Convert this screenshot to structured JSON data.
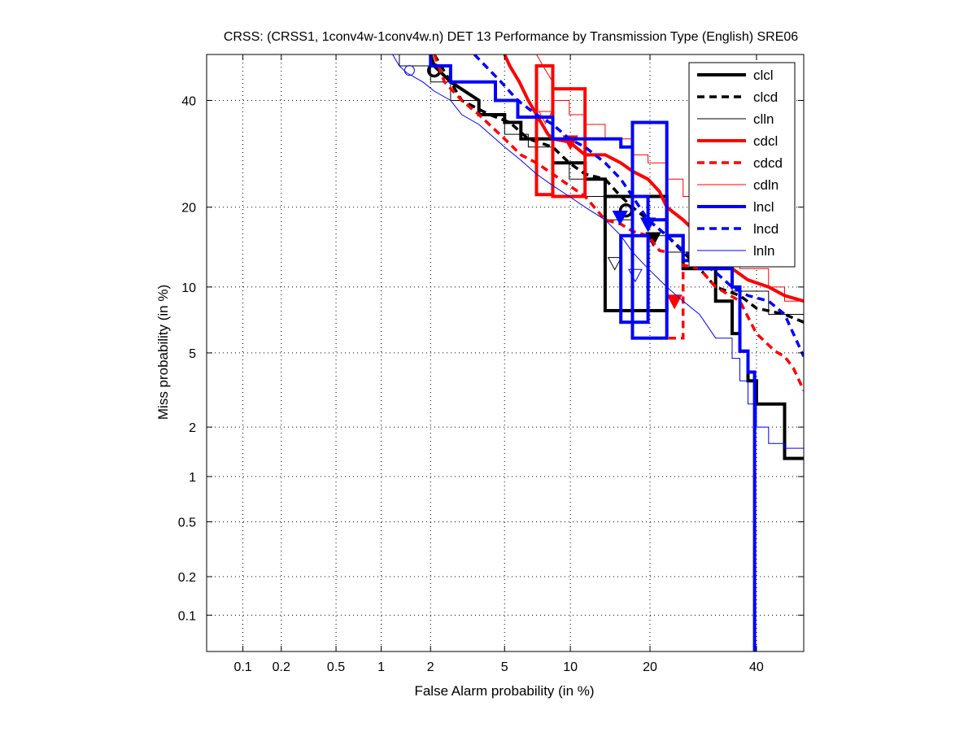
{
  "chart_data": {
    "type": "line",
    "title": "CRSS: (CRSS1, 1conv4w-1conv4w.n) DET 13 Performance by Transmission Type (English) SRE06",
    "xlabel": "False Alarm probability (in %)",
    "ylabel": "Miss probability (in %)",
    "scale": "normal-deviate (probit)",
    "xlim": [
      0.05,
      50.3
    ],
    "ylim": [
      0.05,
      50
    ],
    "grid": true,
    "x_ticks": [
      0.1,
      0.2,
      0.5,
      1,
      2,
      5,
      10,
      20,
      40
    ],
    "x_tick_labels": [
      "0.1",
      "0.2",
      "0.5",
      "1",
      "2",
      "5",
      "10",
      "20",
      "40"
    ],
    "y_ticks": [
      0.1,
      0.2,
      0.5,
      1,
      2,
      5,
      10,
      20,
      40
    ],
    "y_tick_labels": [
      "0.1",
      "0.2",
      "0.5",
      "1",
      "2",
      "5",
      "10",
      "20",
      "40"
    ],
    "legend_position": "top-right",
    "series": [
      {
        "name": "clcl",
        "color": "#000000",
        "style": "solid",
        "width": 4,
        "points": [
          [
            2.0,
            50
          ],
          [
            2.1,
            47.5
          ],
          [
            2.6,
            44
          ],
          [
            3.7,
            40
          ],
          [
            3.7,
            37
          ],
          [
            5.0,
            37
          ],
          [
            5.0,
            35.4
          ],
          [
            6.0,
            35.4
          ],
          [
            6.0,
            32.1
          ],
          [
            8.4,
            32.1
          ],
          [
            8.4,
            27.5
          ],
          [
            11.5,
            27.5
          ],
          [
            11.5,
            24.6
          ],
          [
            13.8,
            24.6
          ],
          [
            13.8,
            21.7
          ],
          [
            22.7,
            21.7
          ],
          [
            22.7,
            15.9
          ],
          [
            25.5,
            15.9
          ],
          [
            25.5,
            11.9
          ],
          [
            31.6,
            11.9
          ],
          [
            31.6,
            8.7
          ],
          [
            34.9,
            8.7
          ],
          [
            34.9,
            6.2
          ],
          [
            36.5,
            6.2
          ],
          [
            36.5,
            5.1
          ],
          [
            38.2,
            5.1
          ],
          [
            38.2,
            3.6
          ],
          [
            40,
            3.6
          ],
          [
            40,
            2.7
          ],
          [
            46.1,
            2.7
          ],
          [
            46.1,
            1.3
          ],
          [
            50.3,
            1.3
          ]
        ],
        "box": {
          "fa": [
            13.8,
            22.7
          ],
          "miss": [
            7.9,
            21.7
          ]
        },
        "marker": {
          "fa": 16.5,
          "miss": 19.5,
          "shape": "circle"
        },
        "start_marker": {
          "fa": 2.1,
          "miss": 46.5,
          "shape": "circle"
        }
      },
      {
        "name": "clcd",
        "color": "#000000",
        "style": "dashed",
        "width": 3.5,
        "points": [
          [
            2.1,
            50
          ],
          [
            2.6,
            44
          ],
          [
            3.0,
            40
          ],
          [
            4.2,
            37
          ],
          [
            5.3,
            35.4
          ],
          [
            6.5,
            32.1
          ],
          [
            8.4,
            30.5
          ],
          [
            9.9,
            27.5
          ],
          [
            11.5,
            25.5
          ],
          [
            13.8,
            24.6
          ],
          [
            15.8,
            21.7
          ],
          [
            17.4,
            20
          ],
          [
            19.7,
            18.1
          ],
          [
            22.7,
            15.9
          ],
          [
            25.5,
            13.8
          ],
          [
            28.5,
            11.9
          ],
          [
            31.6,
            10
          ],
          [
            36.5,
            9.2
          ],
          [
            40,
            8.1
          ],
          [
            46.1,
            7.6
          ],
          [
            50.3,
            7.0
          ]
        ],
        "marker": {
          "fa": 20.5,
          "miss": 15.5,
          "shape": "triangle"
        }
      },
      {
        "name": "clln",
        "color": "#000000",
        "style": "solid",
        "width": 1,
        "points": [
          [
            1.3,
            50
          ],
          [
            1.3,
            47.5
          ],
          [
            2.0,
            47.5
          ],
          [
            2.0,
            44
          ],
          [
            2.6,
            44
          ],
          [
            2.6,
            40
          ],
          [
            3.7,
            40
          ],
          [
            3.7,
            37
          ],
          [
            5.0,
            37
          ],
          [
            5.0,
            33
          ],
          [
            6.5,
            33
          ],
          [
            6.5,
            30.5
          ],
          [
            8.4,
            30.5
          ],
          [
            8.4,
            27.5
          ],
          [
            9.9,
            27.5
          ],
          [
            9.9,
            24.6
          ],
          [
            11.5,
            24.6
          ],
          [
            11.5,
            21.7
          ],
          [
            13.8,
            21.7
          ],
          [
            13.8,
            18.1
          ],
          [
            17.4,
            18.1
          ],
          [
            17.4,
            15.9
          ],
          [
            22.7,
            15.9
          ],
          [
            22.7,
            13.8
          ],
          [
            28.5,
            13.8
          ],
          [
            28.5,
            11.9
          ],
          [
            34.9,
            11.9
          ],
          [
            34.9,
            9.6
          ],
          [
            42.6,
            9.6
          ],
          [
            42.6,
            7.6
          ],
          [
            50.3,
            7.6
          ]
        ],
        "marker": {
          "fa": 15.0,
          "miss": 12.5,
          "shape": "triangle-open"
        }
      },
      {
        "name": "cdcl",
        "color": "#ff0000",
        "style": "solid",
        "width": 4,
        "points": [
          [
            5.0,
            50
          ],
          [
            5.3,
            47.5
          ],
          [
            5.9,
            44
          ],
          [
            6.5,
            40
          ],
          [
            7.1,
            37
          ],
          [
            8.0,
            33
          ],
          [
            8.4,
            32.1
          ],
          [
            9.9,
            31.5
          ],
          [
            11.5,
            29
          ],
          [
            13.8,
            29
          ],
          [
            15.8,
            27.5
          ],
          [
            17.4,
            26
          ],
          [
            19.7,
            24.6
          ],
          [
            21.5,
            22.5
          ],
          [
            22.7,
            20
          ],
          [
            25.5,
            18.1
          ],
          [
            28.5,
            15.9
          ],
          [
            31.6,
            12.8
          ],
          [
            34.9,
            11.9
          ],
          [
            38.2,
            10.7
          ],
          [
            42.6,
            10
          ],
          [
            46.1,
            9.2
          ],
          [
            50.3,
            8.7
          ]
        ],
        "box": {
          "fa": [
            7.1,
            8.4
          ],
          "miss": [
            22,
            47.5
          ]
        },
        "box2": {
          "fa": [
            8.4,
            11.5
          ],
          "miss": [
            21.7,
            42.5
          ]
        },
        "marker": {
          "fa": 10.0,
          "miss": 31.5,
          "shape": "triangle"
        }
      },
      {
        "name": "cdcd",
        "color": "#ff0000",
        "style": "dashed",
        "width": 3.5,
        "points": [
          [
            2.1,
            50
          ],
          [
            2.4,
            44
          ],
          [
            3.0,
            40
          ],
          [
            3.7,
            37
          ],
          [
            5.0,
            32.1
          ],
          [
            6.0,
            29
          ],
          [
            7.1,
            27.5
          ],
          [
            8.4,
            25.5
          ],
          [
            9.9,
            23.5
          ],
          [
            11.5,
            21.7
          ],
          [
            13.8,
            18.1
          ],
          [
            15.8,
            17.5
          ],
          [
            17.4,
            16.5
          ],
          [
            19.7,
            15.9
          ],
          [
            21.5,
            14
          ],
          [
            22.7,
            13.8
          ],
          [
            22.7,
            5.9
          ],
          [
            25.5,
            5.9
          ],
          [
            25.5,
            12.3
          ],
          [
            28.5,
            11.9
          ],
          [
            31.6,
            10
          ],
          [
            36.5,
            8.7
          ],
          [
            40,
            6.2
          ],
          [
            44,
            5.1
          ],
          [
            46.1,
            4.8
          ],
          [
            48,
            4.2
          ],
          [
            50.3,
            3.2
          ]
        ],
        "marker": {
          "fa": 24.0,
          "miss": 8.7,
          "shape": "triangle"
        }
      },
      {
        "name": "cdln",
        "color": "#ff0000",
        "style": "solid",
        "width": 1,
        "points": [
          [
            7.1,
            50
          ],
          [
            7.6,
            47.5
          ],
          [
            8.4,
            44
          ],
          [
            8.4,
            40
          ],
          [
            9.9,
            40
          ],
          [
            9.9,
            37
          ],
          [
            11.5,
            37
          ],
          [
            11.5,
            35
          ],
          [
            13.8,
            35
          ],
          [
            13.8,
            32.1
          ],
          [
            17.4,
            32.1
          ],
          [
            17.4,
            29
          ],
          [
            19.7,
            29
          ],
          [
            19.7,
            27.5
          ],
          [
            22.7,
            27.5
          ],
          [
            22.7,
            24.6
          ],
          [
            25.5,
            24.6
          ],
          [
            25.5,
            21.7
          ],
          [
            28.5,
            21.7
          ],
          [
            28.5,
            18.1
          ],
          [
            31.6,
            18.1
          ],
          [
            31.6,
            13.8
          ],
          [
            36.5,
            13.8
          ],
          [
            36.5,
            11.9
          ],
          [
            42.6,
            11.9
          ],
          [
            42.6,
            10
          ],
          [
            46.1,
            10
          ],
          [
            46.1,
            8.7
          ],
          [
            50.3,
            8.7
          ]
        ],
        "marker": {
          "fa": 7.8,
          "miss": 36.5,
          "shape": "triangle-open"
        }
      },
      {
        "name": "lncl",
        "color": "#0000ff",
        "style": "solid",
        "width": 4,
        "points": [
          [
            2.0,
            50
          ],
          [
            2.0,
            47.5
          ],
          [
            2.6,
            47.5
          ],
          [
            2.6,
            44
          ],
          [
            4.5,
            44
          ],
          [
            4.5,
            40
          ],
          [
            5.8,
            40
          ],
          [
            5.8,
            36.5
          ],
          [
            8.4,
            36.5
          ],
          [
            8.4,
            32.1
          ],
          [
            15.8,
            32.1
          ],
          [
            15.8,
            30.5
          ],
          [
            17.4,
            30.5
          ],
          [
            17.4,
            21.7
          ],
          [
            19.7,
            21.7
          ],
          [
            19.7,
            18.1
          ],
          [
            22.7,
            18.1
          ],
          [
            22.7,
            15.9
          ],
          [
            25.5,
            15.9
          ],
          [
            25.5,
            12.8
          ],
          [
            28.5,
            12.8
          ],
          [
            28.5,
            11.9
          ],
          [
            34.9,
            11.9
          ],
          [
            34.9,
            10
          ],
          [
            36.5,
            10
          ],
          [
            36.5,
            5.1
          ],
          [
            38.2,
            5.1
          ],
          [
            38.2,
            4.0
          ],
          [
            39.6,
            4.0
          ],
          [
            39.6,
            0.05
          ]
        ],
        "box": {
          "fa": [
            17.4,
            22.7
          ],
          "miss": [
            5.9,
            35.4
          ]
        },
        "box2": {
          "fa": [
            15.8,
            19.7
          ],
          "miss": [
            7.0,
            15.9
          ]
        },
        "marker": {
          "fa": 15.7,
          "miss": 18.5,
          "shape": "triangle"
        }
      },
      {
        "name": "lncd",
        "color": "#0000ff",
        "style": "dashed",
        "width": 3.5,
        "points": [
          [
            3.5,
            50
          ],
          [
            4.0,
            47.5
          ],
          [
            4.8,
            44
          ],
          [
            5.8,
            40
          ],
          [
            7.1,
            37
          ],
          [
            8.4,
            35
          ],
          [
            9.9,
            32.1
          ],
          [
            11.5,
            30.5
          ],
          [
            13.8,
            27.5
          ],
          [
            15.8,
            24.6
          ],
          [
            17.4,
            21.7
          ],
          [
            19.7,
            18.1
          ],
          [
            22.7,
            15.9
          ],
          [
            25.5,
            14
          ],
          [
            28.5,
            12.8
          ],
          [
            31.6,
            11.5
          ],
          [
            34.9,
            10
          ],
          [
            38.2,
            9.2
          ],
          [
            42.6,
            8.7
          ],
          [
            46.1,
            7.6
          ],
          [
            48,
            6.2
          ],
          [
            50.3,
            4.8
          ]
        ],
        "marker": {
          "fa": 19.7,
          "miss": 17.5,
          "shape": "triangle"
        }
      },
      {
        "name": "lnln",
        "color": "#0000ff",
        "style": "solid",
        "width": 1,
        "points": [
          [
            1.18,
            50
          ],
          [
            1.3,
            47.5
          ],
          [
            1.44,
            46
          ],
          [
            1.8,
            44
          ],
          [
            2.1,
            42
          ],
          [
            2.6,
            40
          ],
          [
            3.0,
            37
          ],
          [
            3.7,
            35
          ],
          [
            4.5,
            32.1
          ],
          [
            5.0,
            30.5
          ],
          [
            6.0,
            28
          ],
          [
            7.1,
            25.5
          ],
          [
            8.4,
            23.5
          ],
          [
            9.9,
            21.7
          ],
          [
            11.5,
            20
          ],
          [
            13.8,
            18.1
          ],
          [
            15.8,
            15.9
          ],
          [
            17.4,
            13.8
          ],
          [
            19.7,
            11.9
          ],
          [
            22.7,
            10
          ],
          [
            25.5,
            8.7
          ],
          [
            28.5,
            7.6
          ],
          [
            31.6,
            5.9
          ],
          [
            34.9,
            5.9
          ],
          [
            34.9,
            4.7
          ],
          [
            36.5,
            4.7
          ],
          [
            36.5,
            3.6
          ],
          [
            38.2,
            3.6
          ],
          [
            38.2,
            2.7
          ],
          [
            40,
            2.7
          ],
          [
            40,
            2.0
          ],
          [
            42.6,
            2.0
          ],
          [
            42.6,
            1.6
          ],
          [
            46.1,
            1.6
          ],
          [
            46.1,
            1.5
          ],
          [
            50.3,
            1.5
          ]
        ],
        "marker": {
          "fa": 17.8,
          "miss": 11.2,
          "shape": "triangle-open"
        },
        "start_marker": {
          "fa": 1.5,
          "miss": 46.5,
          "shape": "circle-open"
        }
      }
    ]
  }
}
